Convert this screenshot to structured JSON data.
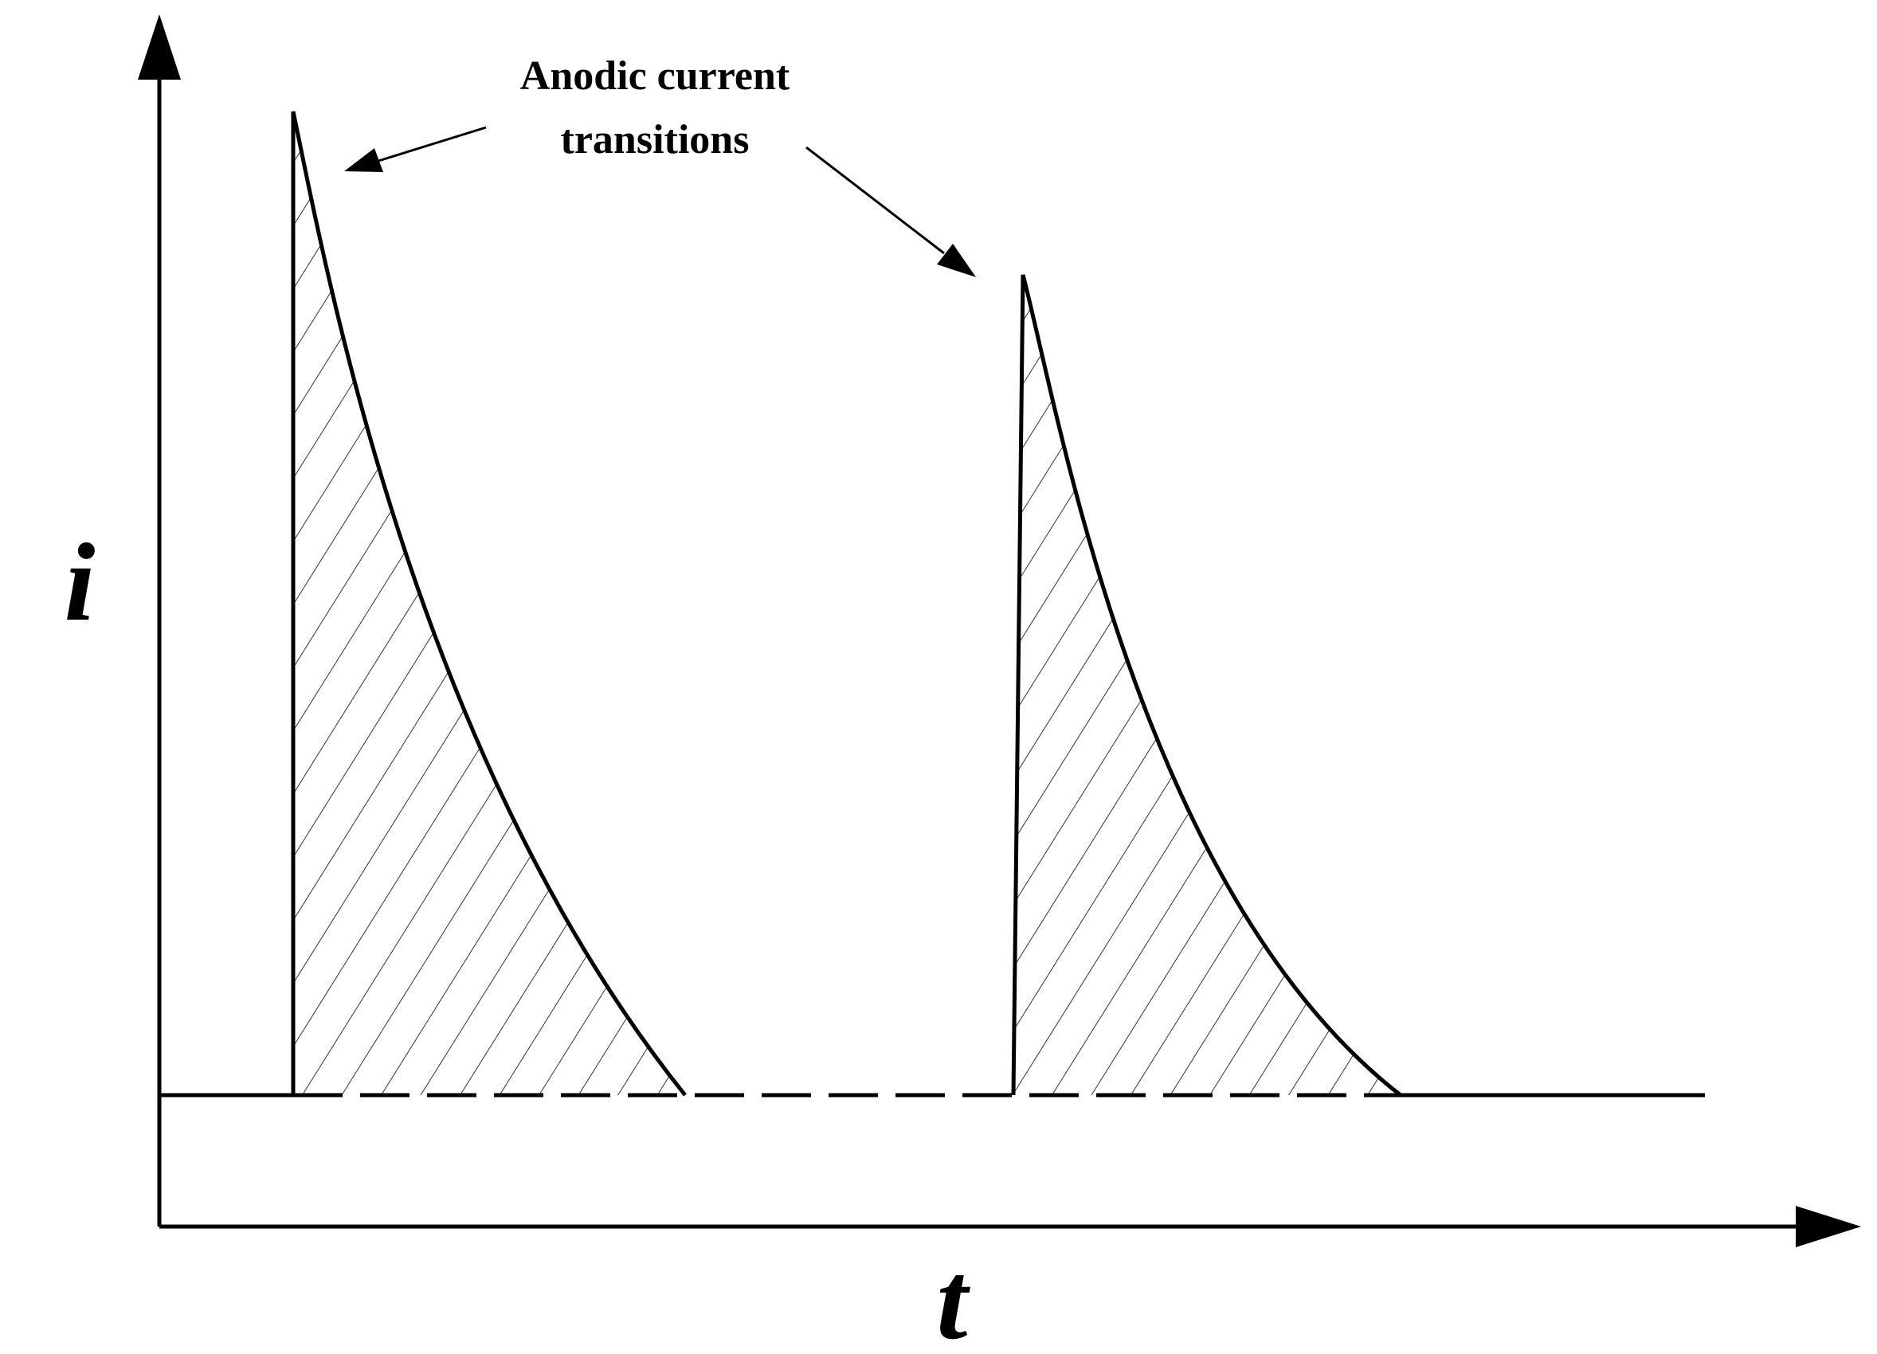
{
  "figure": {
    "annotation_line1": "Anodic current",
    "annotation_line2": "transitions",
    "y_axis_label": "i",
    "x_axis_label": "t"
  },
  "colors": {
    "ink": "#000000",
    "background": "#ffffff"
  }
}
